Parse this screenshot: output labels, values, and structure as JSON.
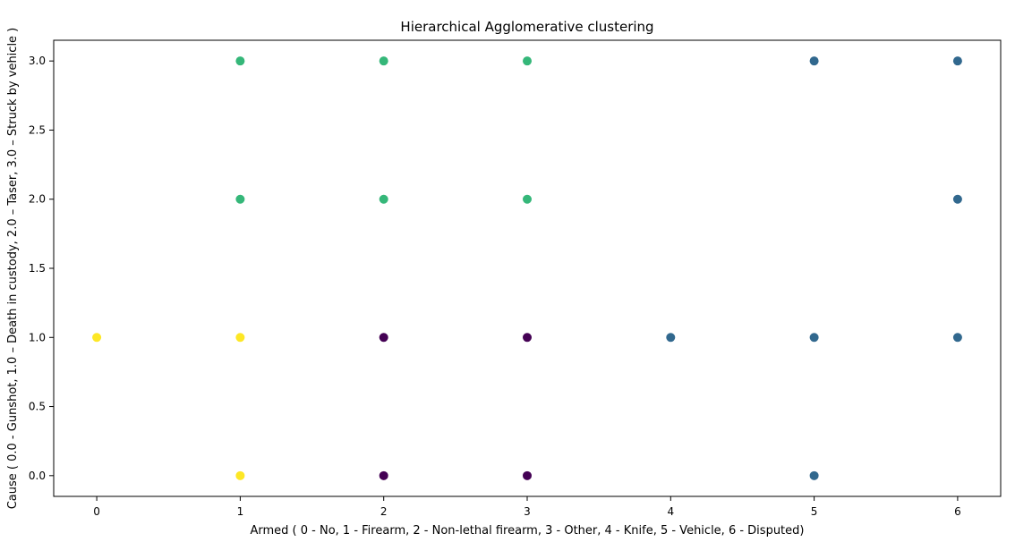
{
  "chart_data": {
    "type": "scatter",
    "title": "Hierarchical Agglomerative clustering",
    "xlabel": "Armed ( 0 - No, 1 - Firearm, 2 - Non-lethal firearm, 3 - Other, 4 - Knife, 5 - Vehicle, 6 - Disputed)",
    "ylabel": "Cause ( 0.0 - Gunshot, 1.0 – Death in custody, 2.0 – Taser, 3.0 – Struck by vehicle )",
    "xlim": [
      -0.3,
      6.3
    ],
    "ylim": [
      -0.15,
      3.15
    ],
    "xticks": [
      "0",
      "1",
      "2",
      "3",
      "4",
      "5",
      "6"
    ],
    "xtick_values": [
      0,
      1,
      2,
      3,
      4,
      5,
      6
    ],
    "yticks": [
      "0.0",
      "0.5",
      "1.0",
      "1.5",
      "2.0",
      "2.5",
      "3.0"
    ],
    "ytick_values": [
      0,
      0.5,
      1,
      1.5,
      2,
      2.5,
      3
    ],
    "grid": false,
    "series": [
      {
        "color": "#440154",
        "points": [
          [
            2,
            1
          ],
          [
            3,
            1
          ],
          [
            2,
            0
          ],
          [
            3,
            0
          ]
        ]
      },
      {
        "color": "#31688e",
        "points": [
          [
            4,
            1
          ],
          [
            5,
            1
          ],
          [
            6,
            1
          ],
          [
            5,
            3
          ],
          [
            6,
            3
          ],
          [
            6,
            2
          ],
          [
            5,
            0
          ]
        ]
      },
      {
        "color": "#35b779",
        "points": [
          [
            1,
            3
          ],
          [
            2,
            3
          ],
          [
            3,
            3
          ],
          [
            1,
            2
          ],
          [
            2,
            2
          ],
          [
            3,
            2
          ]
        ]
      },
      {
        "color": "#fde725",
        "points": [
          [
            0,
            1
          ],
          [
            1,
            1
          ],
          [
            1,
            0
          ]
        ]
      }
    ]
  }
}
